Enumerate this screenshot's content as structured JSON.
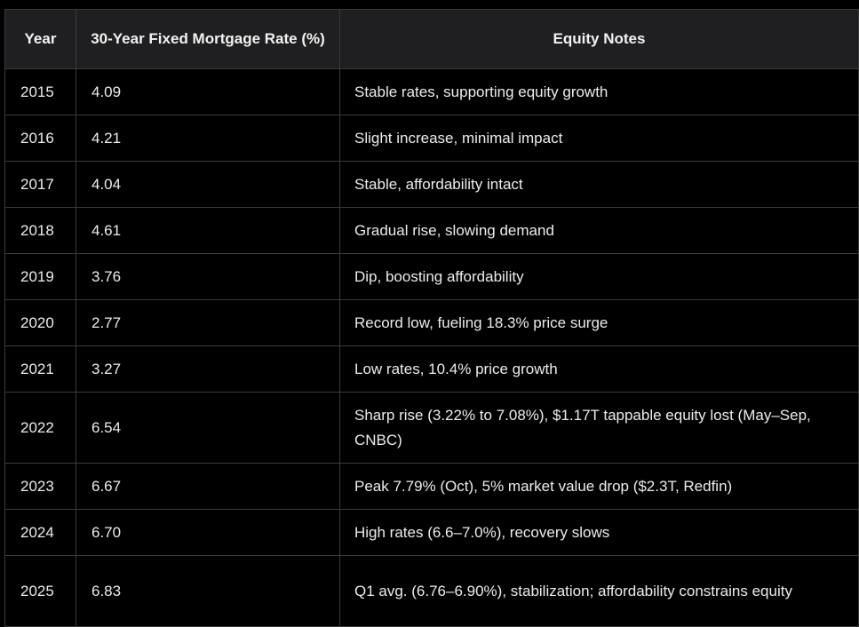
{
  "table": {
    "headers": {
      "year": "Year",
      "rate": "30-Year Fixed Mortgage Rate (%)",
      "notes": "Equity Notes"
    },
    "rows": [
      {
        "year": "2015",
        "rate": "4.09",
        "notes": "Stable rates, supporting equity growth"
      },
      {
        "year": "2016",
        "rate": "4.21",
        "notes": "Slight increase, minimal impact"
      },
      {
        "year": "2017",
        "rate": "4.04",
        "notes": "Stable, affordability intact"
      },
      {
        "year": "2018",
        "rate": "4.61",
        "notes": "Gradual rise, slowing demand"
      },
      {
        "year": "2019",
        "rate": "3.76",
        "notes": "Dip, boosting affordability"
      },
      {
        "year": "2020",
        "rate": "2.77",
        "notes": "Record low, fueling 18.3% price surge"
      },
      {
        "year": "2021",
        "rate": "3.27",
        "notes": "Low rates, 10.4% price growth"
      },
      {
        "year": "2022",
        "rate": "6.54",
        "notes": "Sharp rise (3.22% to 7.08%), $1.17T tappable equity lost (May–Sep, CNBC)"
      },
      {
        "year": "2023",
        "rate": "6.67",
        "notes": "Peak 7.79% (Oct), 5% market value drop ($2.3T, Redfin)"
      },
      {
        "year": "2024",
        "rate": "6.70",
        "notes": "High rates (6.6–7.0%), recovery slows"
      },
      {
        "year": "2025",
        "rate": "6.83",
        "notes": "Q1 avg. (6.76–6.90%), stabilization; affordability constrains equity"
      }
    ]
  }
}
